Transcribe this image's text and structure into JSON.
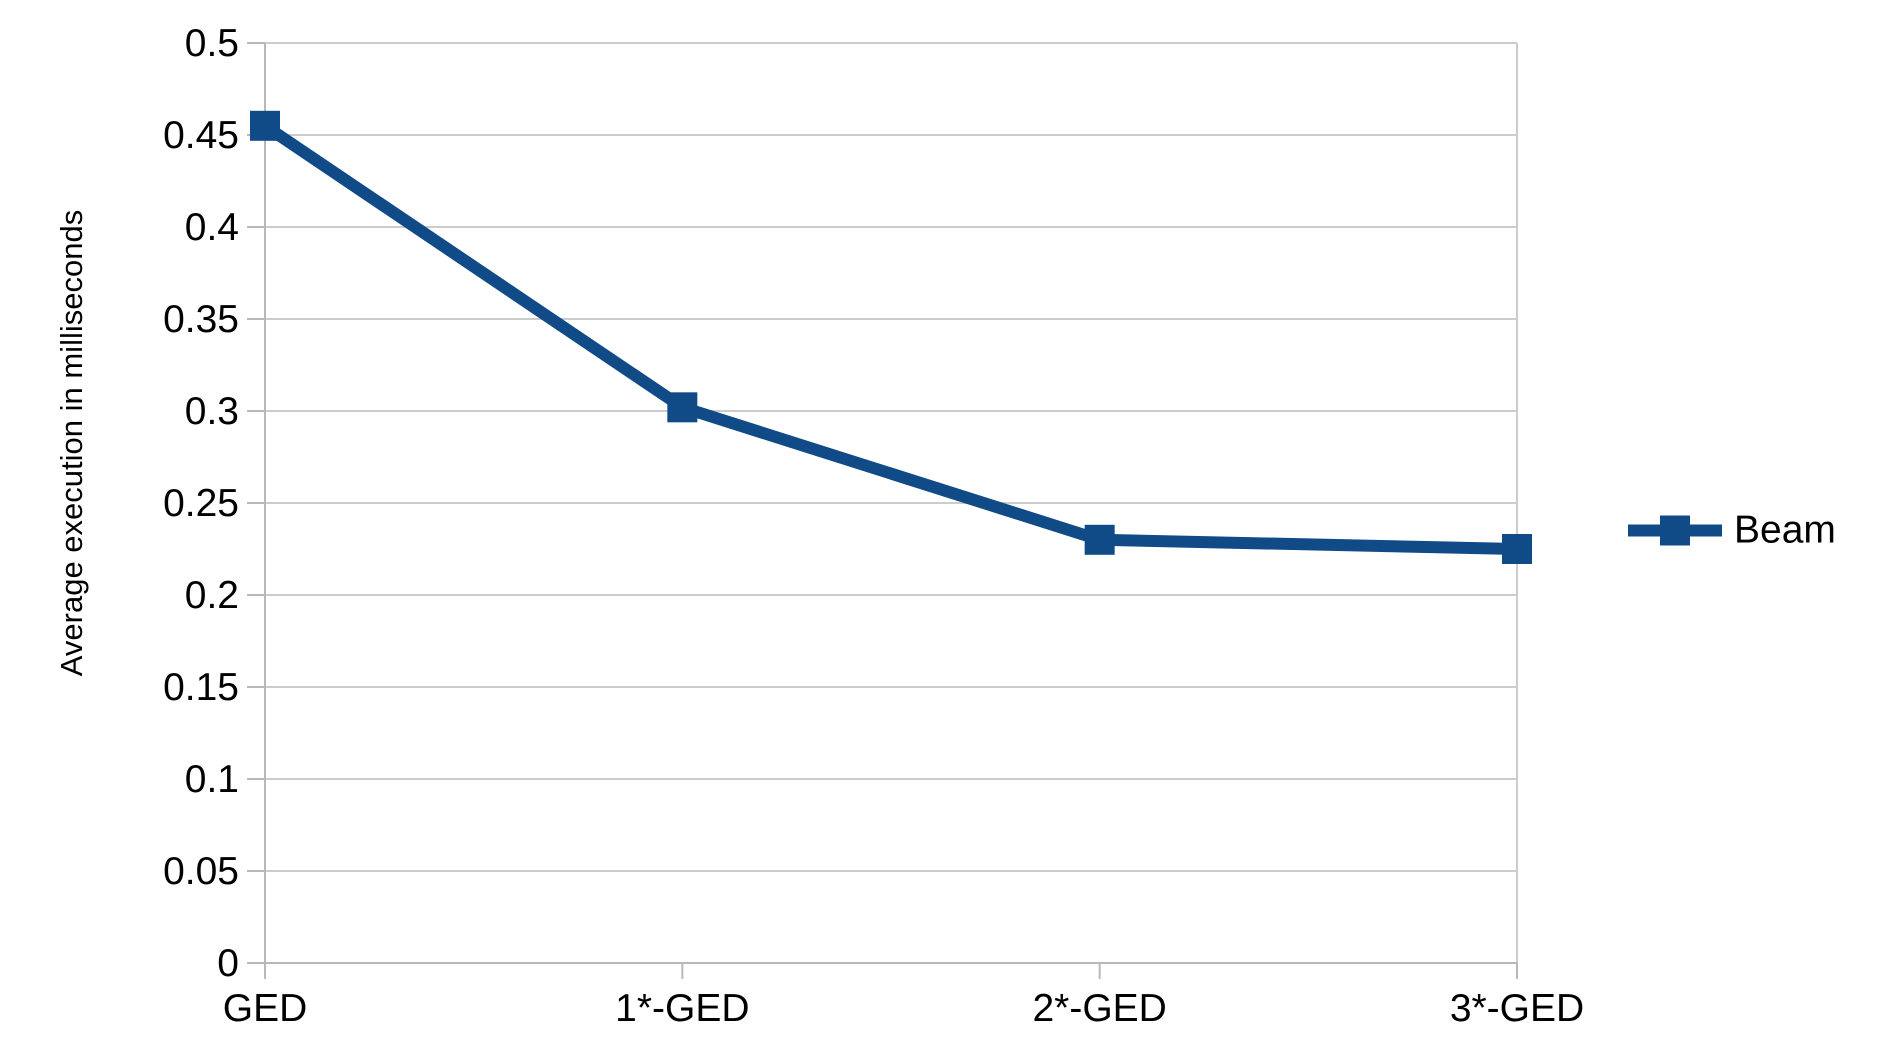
{
  "chart_data": {
    "type": "line",
    "title": "",
    "xlabel": "",
    "ylabel": "Average execution in milliseconds",
    "categories": [
      "GED",
      "1*-GED",
      "2*-GED",
      "3*-GED"
    ],
    "series": [
      {
        "name": "Beam",
        "values": [
          0.455,
          0.302,
          0.23,
          0.225
        ],
        "color": "#114b87",
        "marker": "square",
        "line_width": 12,
        "marker_size": 30
      }
    ],
    "ylim": [
      0,
      0.5
    ],
    "y_ticks": [
      0,
      0.05,
      0.1,
      0.15,
      0.2,
      0.25,
      0.3,
      0.35,
      0.4,
      0.45,
      0.5
    ],
    "y_tick_labels": [
      "0",
      "0.05",
      "0.1",
      "0.15",
      "0.2",
      "0.25",
      "0.3",
      "0.35",
      "0.4",
      "0.45",
      "0.5"
    ],
    "grid": true,
    "legend_position": "right",
    "colors": {
      "gridline": "#cccccc",
      "axis": "#b8b8b8",
      "text": "#000000",
      "background": "#ffffff"
    }
  }
}
